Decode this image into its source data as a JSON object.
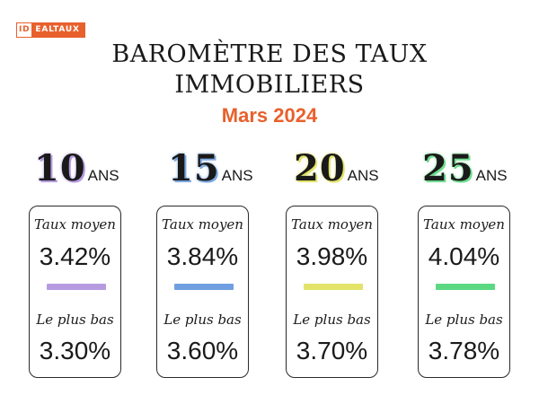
{
  "logo": {
    "left": "ID",
    "right": "EALTAUX"
  },
  "title": {
    "line1": "BAROMÈTRE DES TAUX",
    "line2": "IMMOBILIERS"
  },
  "subtitle": "Mars 2024",
  "accent_color": "#e8602c",
  "terms": [
    {
      "years": "10",
      "unit": "ANS",
      "glow": "#b79be0",
      "avg_label": "Taux moyen",
      "avg": "3.42%",
      "low_label": "Le plus bas",
      "low": "3.30%",
      "bar_color": "#b79be0"
    },
    {
      "years": "15",
      "unit": "ANS",
      "glow": "#7da8e0",
      "avg_label": "Taux moyen",
      "avg": "3.84%",
      "low_label": "Le plus bas",
      "low": "3.60%",
      "bar_color": "#6f9fe0"
    },
    {
      "years": "20",
      "unit": "ANS",
      "glow": "#e3e36a",
      "avg_label": "Taux moyen",
      "avg": "3.98%",
      "low_label": "Le plus bas",
      "low": "3.70%",
      "bar_color": "#e3e36a"
    },
    {
      "years": "25",
      "unit": "ANS",
      "glow": "#6fdc8e",
      "avg_label": "Taux moyen",
      "avg": "4.04%",
      "low_label": "Le plus bas",
      "low": "3.78%",
      "bar_color": "#5dd882"
    }
  ]
}
